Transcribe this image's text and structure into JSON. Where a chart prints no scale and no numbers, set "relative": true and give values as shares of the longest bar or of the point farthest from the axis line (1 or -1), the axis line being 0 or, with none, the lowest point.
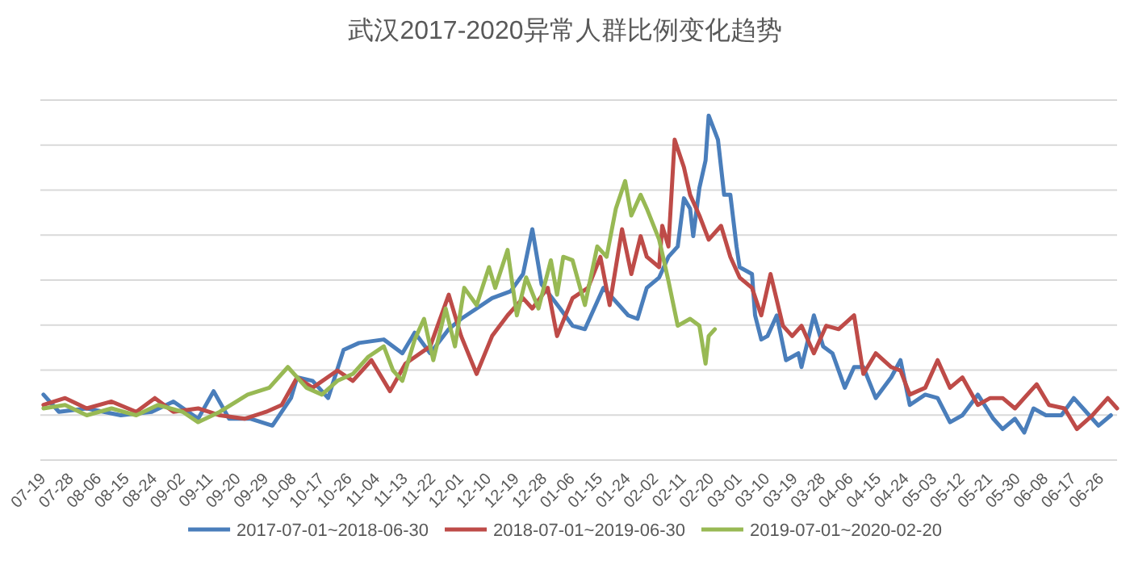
{
  "chart_data": {
    "type": "line",
    "title": "武汉2017-2020异常人群比例变化趋势",
    "relative": true,
    "grid": "y",
    "legend": "bottom",
    "xlim": [
      "2017-07-17",
      "2018-06-30"
    ],
    "xticks": [
      {
        "value": "2017-07-19",
        "label": "07-19"
      },
      {
        "value": "2017-07-28",
        "label": "07-28"
      },
      {
        "value": "2017-08-06",
        "label": "08-06"
      },
      {
        "value": "2017-08-15",
        "label": "08-15"
      },
      {
        "value": "2017-08-24",
        "label": "08-24"
      },
      {
        "value": "2017-09-02",
        "label": "09-02"
      },
      {
        "value": "2017-09-11",
        "label": "09-11"
      },
      {
        "value": "2017-09-20",
        "label": "09-20"
      },
      {
        "value": "2017-09-29",
        "label": "09-29"
      },
      {
        "value": "2017-10-08",
        "label": "10-08"
      },
      {
        "value": "2017-10-17",
        "label": "10-17"
      },
      {
        "value": "2017-10-26",
        "label": "10-26"
      },
      {
        "value": "2017-11-04",
        "label": "11-04"
      },
      {
        "value": "2017-11-13",
        "label": "11-13"
      },
      {
        "value": "2017-11-22",
        "label": "11-22"
      },
      {
        "value": "2017-12-01",
        "label": "12-01"
      },
      {
        "value": "2017-12-10",
        "label": "12-10"
      },
      {
        "value": "2017-12-19",
        "label": "12-19"
      },
      {
        "value": "2017-12-28",
        "label": "12-28"
      },
      {
        "value": "2018-01-06",
        "label": "01-06"
      },
      {
        "value": "2018-01-15",
        "label": "01-15"
      },
      {
        "value": "2018-01-24",
        "label": "01-24"
      },
      {
        "value": "2018-02-02",
        "label": "02-02"
      },
      {
        "value": "2018-02-11",
        "label": "02-11"
      },
      {
        "value": "2018-02-20",
        "label": "02-20"
      },
      {
        "value": "2018-03-01",
        "label": "03-01"
      },
      {
        "value": "2018-03-10",
        "label": "03-10"
      },
      {
        "value": "2018-03-19",
        "label": "03-19"
      },
      {
        "value": "2018-03-28",
        "label": "03-28"
      },
      {
        "value": "2018-04-06",
        "label": "04-06"
      },
      {
        "value": "2018-04-15",
        "label": "04-15"
      },
      {
        "value": "2018-04-24",
        "label": "04-24"
      },
      {
        "value": "2018-05-03",
        "label": "05-03"
      },
      {
        "value": "2018-05-12",
        "label": "05-12"
      },
      {
        "value": "2018-05-21",
        "label": "05-21"
      },
      {
        "value": "2018-05-30",
        "label": "05-30"
      },
      {
        "value": "2018-06-08",
        "label": "06-08"
      },
      {
        "value": "2018-06-17",
        "label": "06-17"
      },
      {
        "value": "2018-06-26",
        "label": "06-26"
      }
    ],
    "series": [
      {
        "name": "2017-07-01~2018-06-30",
        "color": "#4a7ebb",
        "x": [
          "2017-07-18",
          "2017-07-23",
          "2017-08-01",
          "2017-08-12",
          "2017-08-22",
          "2017-08-29",
          "2017-09-06",
          "2017-09-11",
          "2017-09-16",
          "2017-09-23",
          "2017-09-30",
          "2017-10-06",
          "2017-10-08",
          "2017-10-13",
          "2017-10-18",
          "2017-10-23",
          "2017-10-28",
          "2017-11-05",
          "2017-11-11",
          "2017-11-15",
          "2017-11-20",
          "2017-11-26",
          "2017-11-30",
          "2017-12-05",
          "2017-12-10",
          "2017-12-16",
          "2017-12-20",
          "2017-12-23",
          "2017-12-26",
          "2018-01-01",
          "2018-01-05",
          "2018-01-09",
          "2018-01-15",
          "2018-01-23",
          "2018-01-26",
          "2018-01-29",
          "2018-02-02",
          "2018-02-05",
          "2018-02-08",
          "2018-02-10",
          "2018-02-12",
          "2018-02-13",
          "2018-02-15",
          "2018-02-17",
          "2018-02-18",
          "2018-02-21",
          "2018-02-23",
          "2018-02-25",
          "2018-02-27",
          "2018-02-28",
          "2018-03-04",
          "2018-03-05",
          "2018-03-07",
          "2018-03-09",
          "2018-03-12",
          "2018-03-15",
          "2018-03-19",
          "2018-03-20",
          "2018-03-24",
          "2018-03-27",
          "2018-03-30",
          "2018-04-03",
          "2018-04-06",
          "2018-04-09",
          "2018-04-13",
          "2018-04-18",
          "2018-04-21",
          "2018-04-24",
          "2018-04-29",
          "2018-05-03",
          "2018-05-07",
          "2018-05-11",
          "2018-05-16",
          "2018-05-21",
          "2018-05-24",
          "2018-05-28",
          "2018-05-31",
          "2018-06-03",
          "2018-06-07",
          "2018-06-12",
          "2018-06-16",
          "2018-06-20",
          "2018-06-24",
          "2018-06-28"
        ],
        "values": [
          0.19,
          0.14,
          0.15,
          0.13,
          0.14,
          0.17,
          0.12,
          0.2,
          0.12,
          0.12,
          0.1,
          0.18,
          0.24,
          0.23,
          0.18,
          0.32,
          0.34,
          0.35,
          0.31,
          0.37,
          0.31,
          0.38,
          0.41,
          0.44,
          0.47,
          0.49,
          0.54,
          0.67,
          0.51,
          0.44,
          0.39,
          0.38,
          0.5,
          0.42,
          0.41,
          0.5,
          0.53,
          0.59,
          0.62,
          0.76,
          0.73,
          0.65,
          0.79,
          0.87,
          1.0,
          0.93,
          0.77,
          0.77,
          0.62,
          0.56,
          0.54,
          0.42,
          0.35,
          0.36,
          0.42,
          0.29,
          0.31,
          0.27,
          0.42,
          0.33,
          0.31,
          0.21,
          0.27,
          0.27,
          0.18,
          0.24,
          0.29,
          0.16,
          0.19,
          0.18,
          0.11,
          0.13,
          0.19,
          0.12,
          0.09,
          0.12,
          0.08,
          0.15,
          0.13,
          0.13,
          0.18,
          0.14,
          0.1,
          0.13
        ]
      },
      {
        "name": "2018-07-01~2019-06-30",
        "color": "#be4b48",
        "x": [
          "2017-07-18",
          "2017-07-25",
          "2017-08-01",
          "2017-08-09",
          "2017-08-17",
          "2017-08-23",
          "2017-08-29",
          "2017-09-06",
          "2017-09-13",
          "2017-09-21",
          "2017-09-28",
          "2017-10-03",
          "2017-10-08",
          "2017-10-13",
          "2017-10-21",
          "2017-10-26",
          "2017-11-01",
          "2017-11-07",
          "2017-11-12",
          "2017-11-20",
          "2017-11-26",
          "2017-11-30",
          "2017-12-05",
          "2017-12-10",
          "2017-12-15",
          "2017-12-20",
          "2017-12-23",
          "2017-12-28",
          "2017-12-31",
          "2018-01-05",
          "2018-01-10",
          "2018-01-14",
          "2018-01-17",
          "2018-01-21",
          "2018-01-24",
          "2018-01-27",
          "2018-01-29",
          "2018-02-02",
          "2018-02-03",
          "2018-02-05",
          "2018-02-07",
          "2018-02-10",
          "2018-02-12",
          "2018-02-15",
          "2018-02-18",
          "2018-02-22",
          "2018-02-25",
          "2018-02-28",
          "2018-03-04",
          "2018-03-07",
          "2018-03-10",
          "2018-03-14",
          "2018-03-17",
          "2018-03-20",
          "2018-03-24",
          "2018-03-28",
          "2018-04-01",
          "2018-04-06",
          "2018-04-09",
          "2018-04-13",
          "2018-04-18",
          "2018-04-21",
          "2018-04-24",
          "2018-04-29",
          "2018-05-03",
          "2018-05-07",
          "2018-05-11",
          "2018-05-16",
          "2018-05-20",
          "2018-05-24",
          "2018-05-28",
          "2018-06-04",
          "2018-06-08",
          "2018-06-13",
          "2018-06-17",
          "2018-06-22",
          "2018-06-27",
          "2018-06-30"
        ],
        "values": [
          0.16,
          0.18,
          0.15,
          0.17,
          0.14,
          0.18,
          0.14,
          0.15,
          0.13,
          0.12,
          0.14,
          0.16,
          0.24,
          0.21,
          0.26,
          0.23,
          0.29,
          0.2,
          0.28,
          0.33,
          0.48,
          0.36,
          0.25,
          0.36,
          0.42,
          0.47,
          0.44,
          0.5,
          0.36,
          0.47,
          0.5,
          0.59,
          0.45,
          0.67,
          0.54,
          0.65,
          0.59,
          0.56,
          0.68,
          0.62,
          0.93,
          0.85,
          0.77,
          0.71,
          0.64,
          0.68,
          0.59,
          0.53,
          0.5,
          0.42,
          0.54,
          0.39,
          0.36,
          0.39,
          0.31,
          0.39,
          0.38,
          0.42,
          0.25,
          0.31,
          0.27,
          0.26,
          0.19,
          0.21,
          0.29,
          0.21,
          0.24,
          0.16,
          0.18,
          0.18,
          0.15,
          0.22,
          0.16,
          0.15,
          0.09,
          0.13,
          0.18,
          0.15
        ]
      },
      {
        "name": "2019-07-01~2020-02-20",
        "color": "#98b954",
        "x": [
          "2017-07-18",
          "2017-07-25",
          "2017-08-01",
          "2017-08-09",
          "2017-08-17",
          "2017-08-24",
          "2017-09-01",
          "2017-09-06",
          "2017-09-13",
          "2017-09-22",
          "2017-09-29",
          "2017-10-05",
          "2017-10-11",
          "2017-10-16",
          "2017-10-21",
          "2017-10-26",
          "2017-10-31",
          "2017-11-05",
          "2017-11-08",
          "2017-11-11",
          "2017-11-15",
          "2017-11-18",
          "2017-11-21",
          "2017-11-25",
          "2017-11-28",
          "2017-12-01",
          "2017-12-05",
          "2017-12-09",
          "2017-12-11",
          "2017-12-15",
          "2017-12-18",
          "2017-12-21",
          "2017-12-25",
          "2017-12-29",
          "2017-12-31",
          "2018-01-02",
          "2018-01-05",
          "2018-01-09",
          "2018-01-13",
          "2018-01-16",
          "2018-01-19",
          "2018-01-22",
          "2018-01-24",
          "2018-01-27",
          "2018-01-29",
          "2018-02-02",
          "2018-02-05",
          "2018-02-08",
          "2018-02-12",
          "2018-02-15",
          "2018-02-17",
          "2018-02-18",
          "2018-02-20"
        ],
        "values": [
          0.15,
          0.16,
          0.13,
          0.15,
          0.13,
          0.16,
          0.14,
          0.11,
          0.14,
          0.19,
          0.21,
          0.27,
          0.21,
          0.19,
          0.23,
          0.25,
          0.3,
          0.33,
          0.26,
          0.23,
          0.35,
          0.41,
          0.29,
          0.44,
          0.33,
          0.5,
          0.45,
          0.56,
          0.5,
          0.61,
          0.42,
          0.53,
          0.44,
          0.58,
          0.48,
          0.59,
          0.58,
          0.45,
          0.62,
          0.59,
          0.73,
          0.81,
          0.71,
          0.77,
          0.73,
          0.64,
          0.52,
          0.39,
          0.41,
          0.39,
          0.28,
          0.36,
          0.38
        ]
      }
    ]
  }
}
